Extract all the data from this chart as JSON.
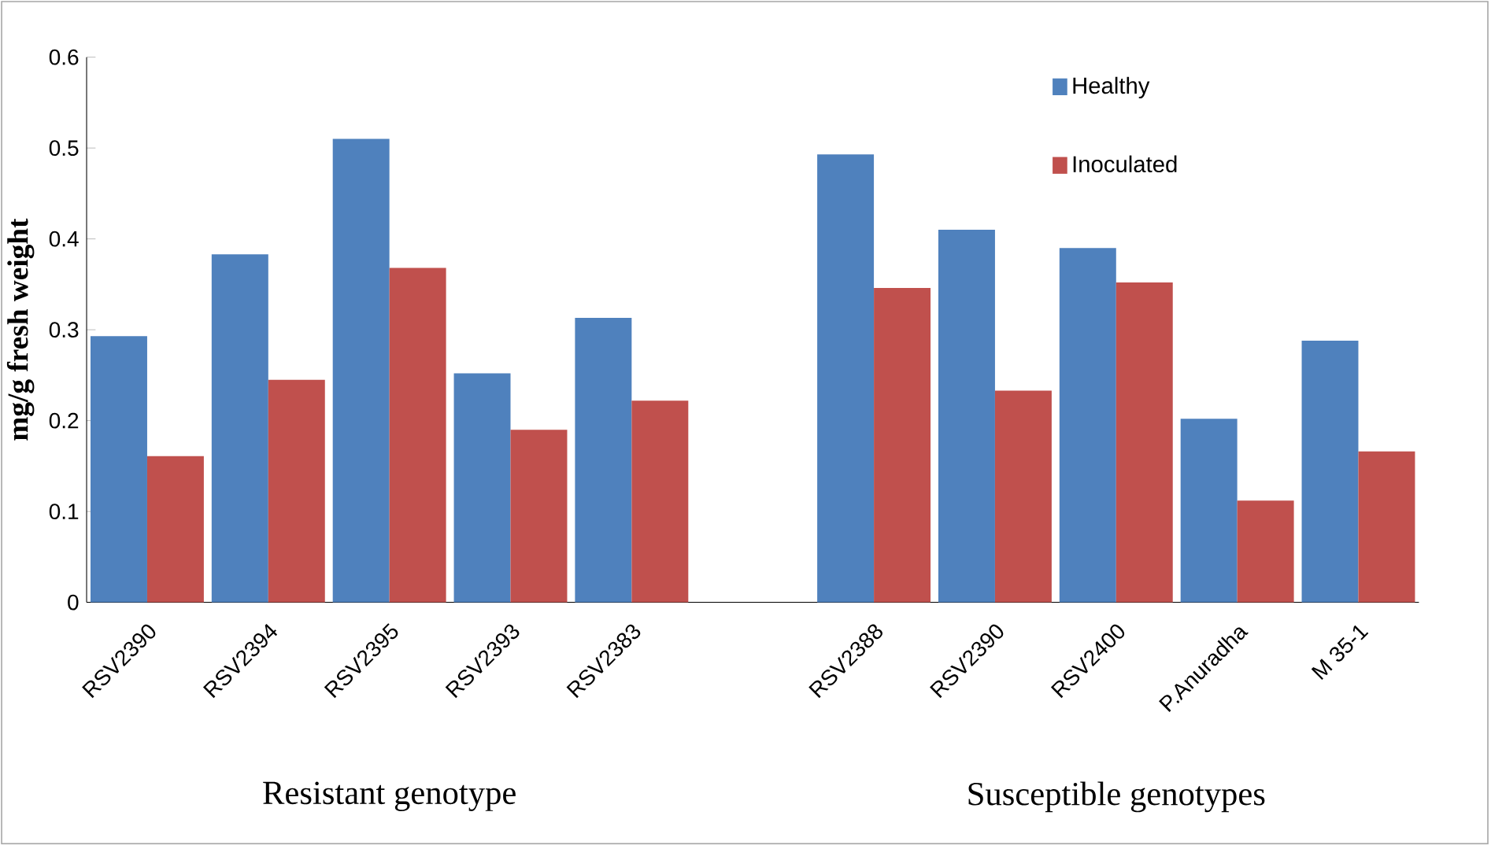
{
  "chart_data": {
    "type": "bar",
    "ylabel": "mg/g fresh weight",
    "categories": [
      "RSV2390",
      "RSV2394",
      "RSV2395",
      "RSV2393",
      "RSV2383",
      null,
      "RSV2388",
      "RSV2390",
      "RSV2400",
      "P.Anuradha",
      "M 35-1"
    ],
    "series": [
      {
        "name": "Healthy",
        "color": "#4f81bd",
        "values": [
          0.293,
          0.383,
          0.51,
          0.252,
          0.313,
          null,
          0.493,
          0.41,
          0.39,
          0.202,
          0.288
        ]
      },
      {
        "name": "Inoculated",
        "color": "#c0504d",
        "values": [
          0.161,
          0.245,
          0.368,
          0.19,
          0.222,
          null,
          0.346,
          0.233,
          0.352,
          0.112,
          0.166
        ]
      }
    ],
    "ylim": [
      0,
      0.6
    ],
    "yticks": [
      0,
      0.1,
      0.2,
      0.3,
      0.4,
      0.5,
      0.6
    ],
    "annotations": [
      "Resistant genotype",
      "Susceptible genotypes"
    ],
    "grid": false,
    "legend": "top right"
  }
}
